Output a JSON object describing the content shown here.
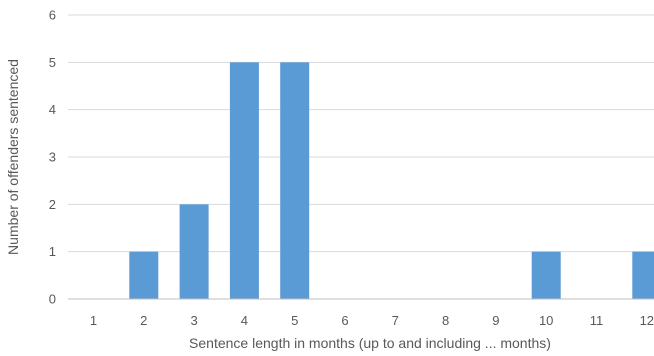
{
  "chart_data": {
    "type": "bar",
    "title": "",
    "xlabel": "Sentence length in months (up to and including ... months)",
    "ylabel": "Number of offenders sentenced",
    "categories": [
      "1",
      "2",
      "3",
      "4",
      "5",
      "6",
      "7",
      "8",
      "9",
      "10",
      "11",
      "12"
    ],
    "values": [
      0,
      1,
      2,
      5,
      5,
      0,
      0,
      0,
      0,
      1,
      0,
      1
    ],
    "ylim": [
      0,
      6
    ],
    "yticks": [
      "0",
      "1",
      "2",
      "3",
      "4",
      "5",
      "6"
    ],
    "grid": true,
    "legend": "none",
    "colors": {
      "bar": "#5B9BD5",
      "grid": "#D9D9D9",
      "axis": "#BFBFBF",
      "text": "#595959"
    }
  }
}
